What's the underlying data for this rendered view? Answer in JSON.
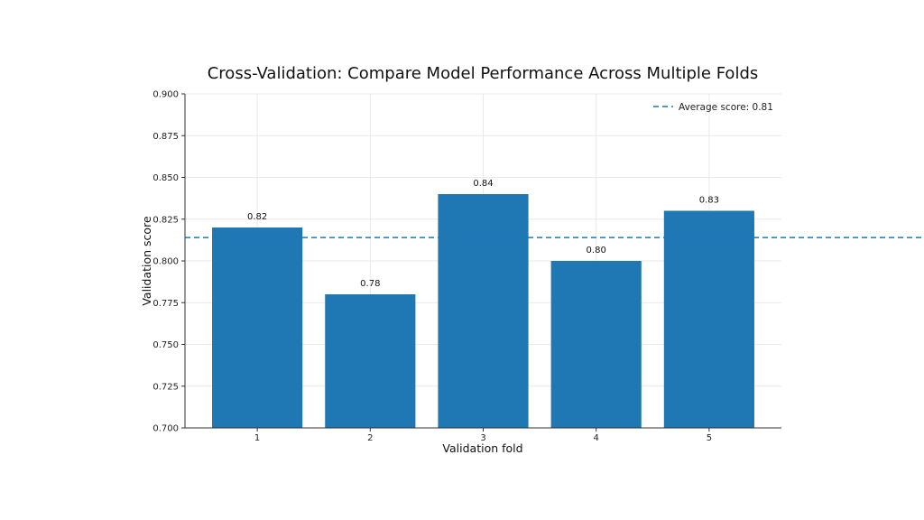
{
  "chart_data": {
    "type": "bar",
    "title": "Cross-Validation: Compare Model Performance Across Multiple Folds",
    "xlabel": "Validation fold",
    "ylabel": "Validation score",
    "categories": [
      "1",
      "2",
      "3",
      "4",
      "5"
    ],
    "values": [
      0.82,
      0.78,
      0.84,
      0.8,
      0.83
    ],
    "value_labels": [
      "0.82",
      "0.78",
      "0.84",
      "0.80",
      "0.83"
    ],
    "ylim": [
      0.7,
      0.9
    ],
    "yticks": [
      0.7,
      0.725,
      0.75,
      0.775,
      0.8,
      0.825,
      0.85,
      0.875,
      0.9
    ],
    "ytick_labels": [
      "0.700",
      "0.725",
      "0.750",
      "0.775",
      "0.800",
      "0.825",
      "0.850",
      "0.875",
      "0.900"
    ],
    "reference_line": {
      "label": "Average score: 0.81",
      "value": 0.814
    },
    "grid": true,
    "legend_position": "top-right",
    "colors": {
      "bar": "#1f77b4",
      "average_line": "#1f77b4",
      "grid": "#e9e9e9",
      "axis": "#333333"
    }
  }
}
